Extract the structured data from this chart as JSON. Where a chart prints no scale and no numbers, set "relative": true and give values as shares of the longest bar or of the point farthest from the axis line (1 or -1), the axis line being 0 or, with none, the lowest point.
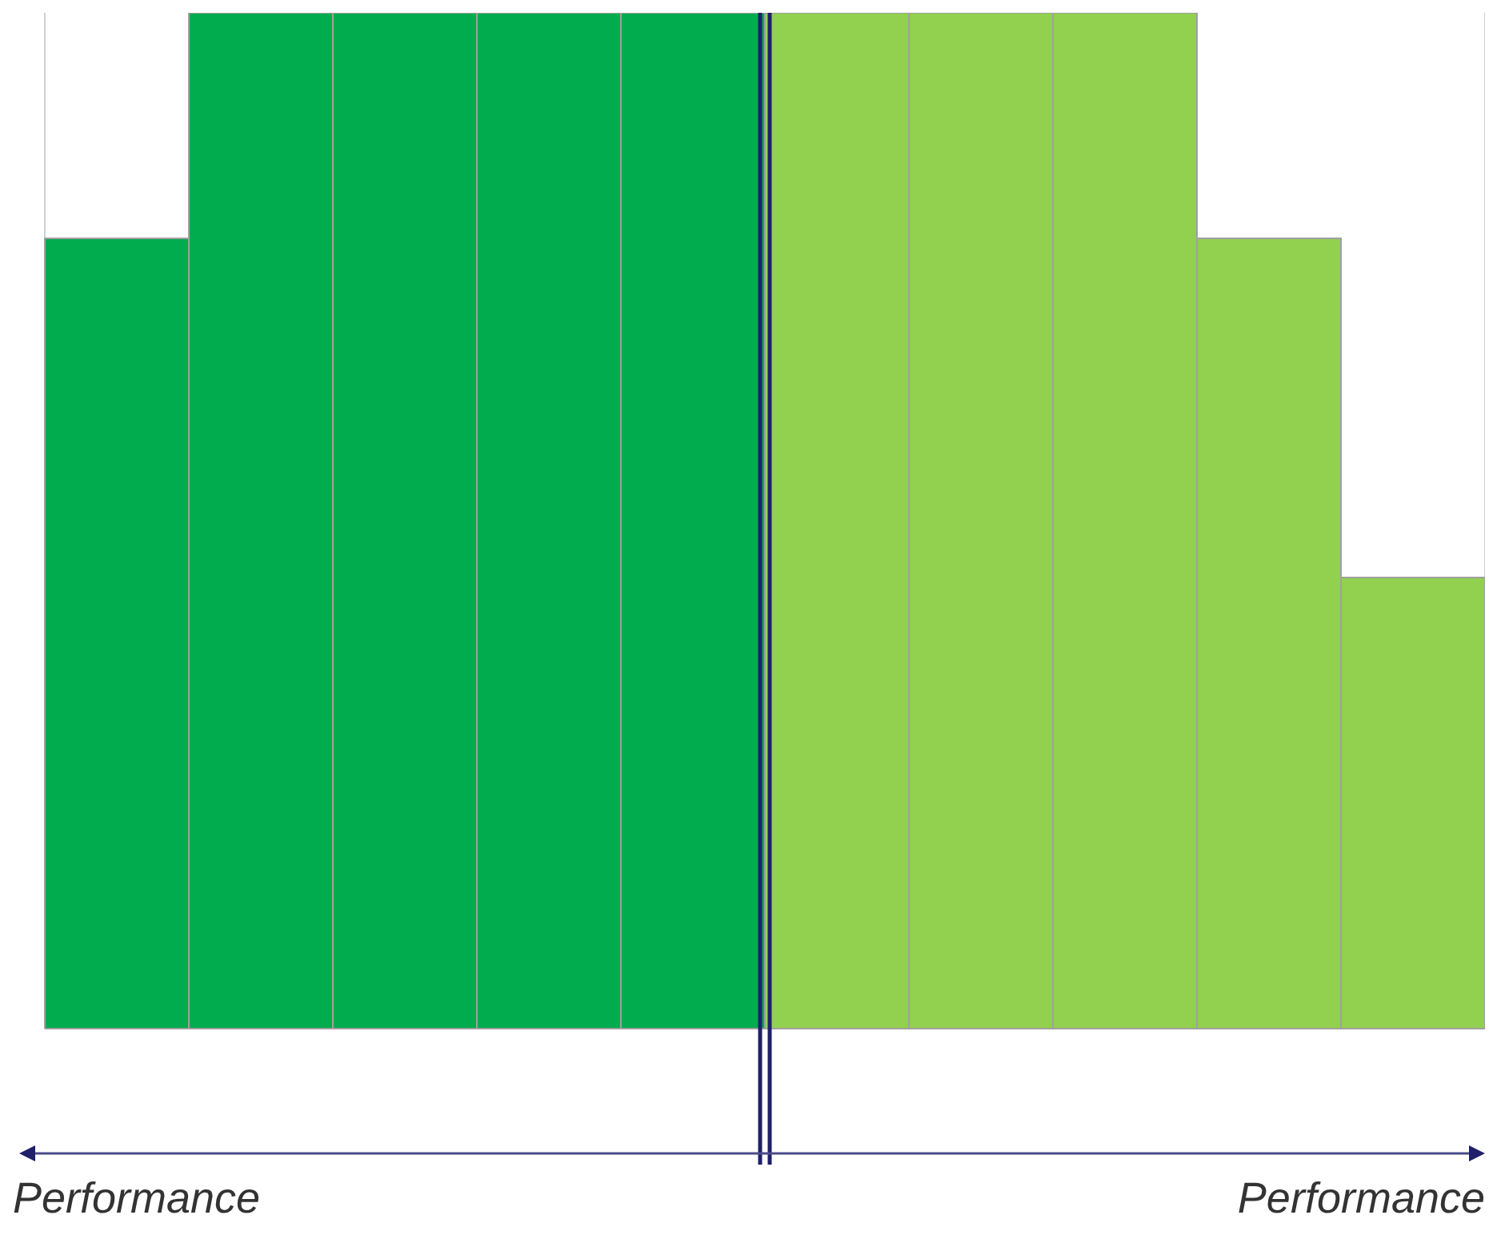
{
  "chart_data": {
    "type": "bar",
    "relative": true,
    "categories": [
      null,
      null,
      null,
      null,
      null,
      null,
      null,
      null,
      null,
      null
    ],
    "values": [
      0.778,
      1,
      1,
      1,
      1,
      1,
      1,
      1,
      0.778,
      0.444
    ],
    "colors": [
      "#00ac4e",
      "#00ac4e",
      "#00ac4e",
      "#00ac4e",
      "#00ac4e",
      "#92d050",
      "#92d050",
      "#92d050",
      "#92d050",
      "#92d050"
    ],
    "grid": "x",
    "tick_labels": false,
    "annotations": [
      "Performance",
      "Performance"
    ]
  }
}
